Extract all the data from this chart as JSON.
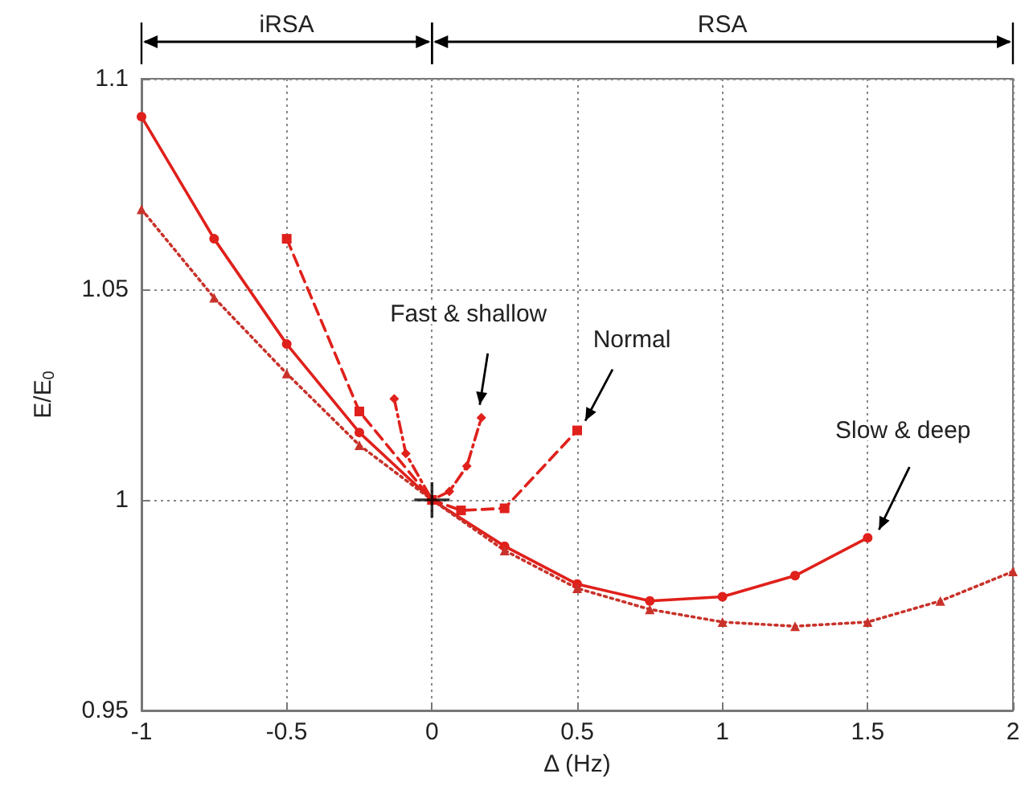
{
  "chart_data": {
    "type": "line",
    "xlabel": "Δ (Hz)",
    "ylabel": "E/E$_{0}$",
    "xlim": [
      -1,
      2
    ],
    "xticks": [
      -1,
      -0.5,
      0,
      0.5,
      1,
      1.5,
      2
    ],
    "ylim": [
      0.95,
      1.1
    ],
    "yticks": [
      0.95,
      1,
      1.05,
      1.1
    ],
    "grid": true,
    "series": [
      {
        "color": "#e0201b",
        "line_style": "solid",
        "marker": "circle",
        "x": [
          -1,
          -0.75,
          -0.5,
          -0.25,
          0,
          0.25,
          0.5,
          0.75,
          1,
          1.25,
          1.5
        ],
        "values": [
          1.091,
          1.062,
          1.037,
          1.016,
          1.0,
          0.989,
          0.98,
          0.976,
          0.977,
          0.982,
          0.991
        ]
      },
      {
        "color": "#c8322a",
        "line_style": "dotted",
        "marker": "triangle",
        "x": [
          -1,
          -0.75,
          -0.5,
          -0.25,
          0,
          0.25,
          0.5,
          0.75,
          1,
          1.25,
          1.5,
          1.75,
          2
        ],
        "values": [
          1.069,
          1.048,
          1.03,
          1.013,
          1.0,
          0.988,
          0.979,
          0.974,
          0.971,
          0.97,
          0.971,
          0.976,
          0.983
        ]
      },
      {
        "color": "#e0201b",
        "line_style": "dashed",
        "marker": "square",
        "x": [
          -0.5,
          -0.25,
          0,
          0.1,
          0.25,
          0.5
        ],
        "values": [
          1.062,
          1.021,
          1.0,
          0.9975,
          0.998,
          1.0165
        ]
      },
      {
        "color": "#e0201b",
        "line_style": "dashdot",
        "marker": "diamond",
        "x": [
          -0.13,
          -0.09,
          0,
          0.06,
          0.12,
          0.17
        ],
        "values": [
          1.024,
          1.011,
          1.0,
          1.002,
          1.008,
          1.0195
        ]
      },
      {
        "type": "scatter",
        "color": "#000000",
        "marker": "cross",
        "x": [
          0
        ],
        "values": [
          1.0
        ]
      }
    ],
    "annotations": [
      "iRSA",
      "RSA",
      {
        "text": "Fast & shallow",
        "x": 0.17,
        "y": 1.0195
      },
      {
        "text": "Normal",
        "x": 0.5,
        "y": 1.0165
      },
      {
        "text": "Slow & deep",
        "x": 1.5,
        "y": 0.991
      }
    ]
  }
}
